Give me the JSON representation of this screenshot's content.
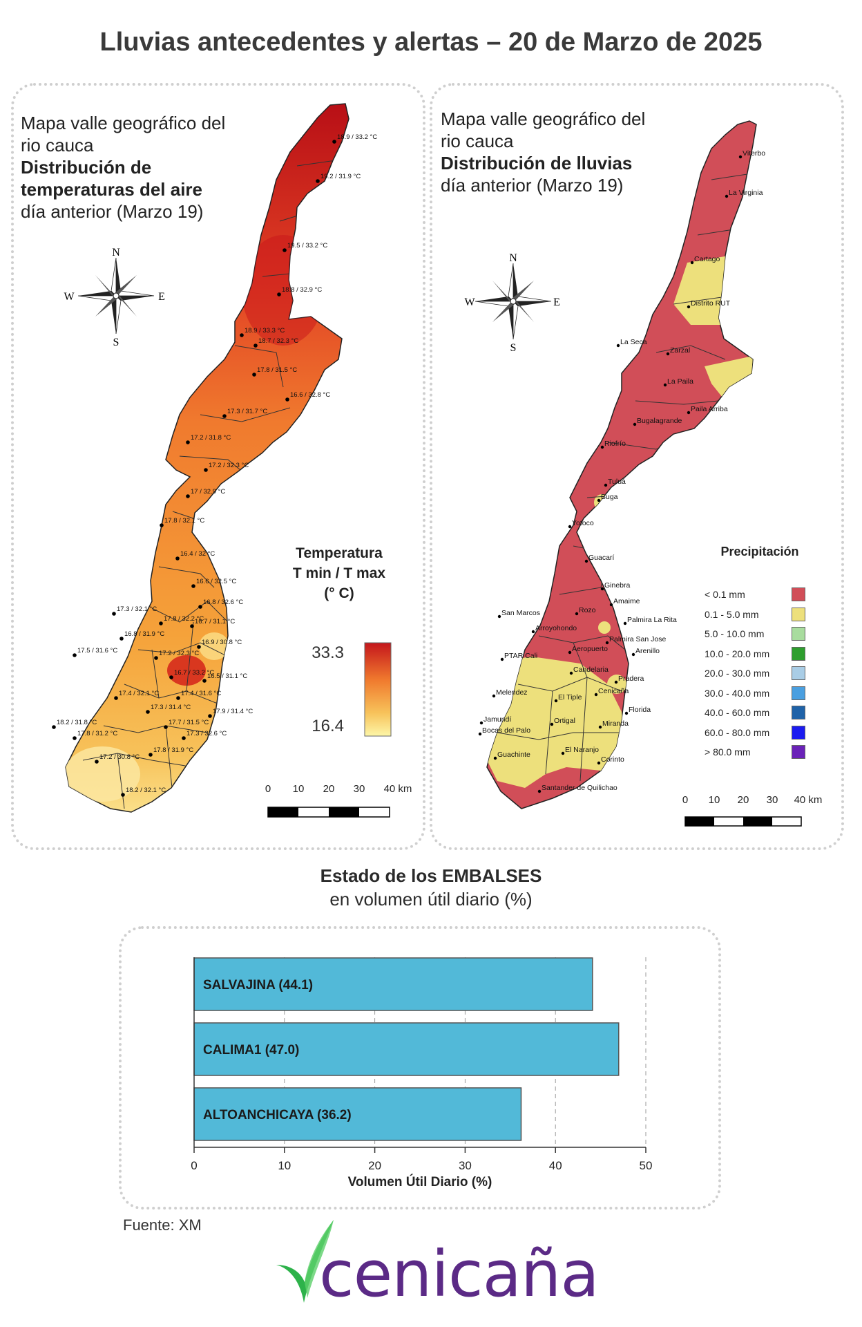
{
  "title": "Lluvias antecedentes y alertas – 20 de Marzo de 2025",
  "temp_panel": {
    "line1": "Mapa valle geográfico del",
    "line2": "rio cauca",
    "bold1": "Distribución de",
    "bold2": "temperaturas del aire",
    "sub": "día anterior (Marzo 19)",
    "legend_line1": "Temperatura",
    "legend_line2": "T min / T max",
    "legend_line3": "(° C)",
    "max_value": "33.3",
    "min_value": "16.4",
    "colors": {
      "low": "#fdf6a8",
      "mid": "#f5a23a",
      "high": "#c4161c"
    },
    "stations": [
      "18.9 / 33.2 °C",
      "19.2 / 31.9 °C",
      "19.5 / 33.2 °C",
      "18.8 / 32.9 °C",
      "18.9 / 33.3 °C",
      "18.7 / 32.3 °C",
      "17.8 / 31.5 °C",
      "16.6 / 32.8 °C",
      "17.3 / 31.7 °C",
      "17.2 / 31.8 °C",
      "17.2 / 32.3 °C",
      "17 / 32.9 °C",
      "17.8 / 32.1 °C",
      "16.4 / 32 °C",
      "16.6 / 32.5 °C",
      "16.8 / 32.6 °C",
      "17.3 / 32.1 °C",
      "17.8 / 32.2 °C",
      "16.7 / 31.1 °C",
      "16.8 / 31.9 °C",
      "16.9 / 30.8 °C",
      "17.5 / 31.6 °C",
      "17.2 / 32.3 °C",
      "16.7 / 33.2 °C",
      "16.5 / 31.1 °C",
      "17.4 / 32.1 °C",
      "17.4 / 31.6 °C",
      "17.3 / 31.4 °C",
      "17.9 / 31.4 °C",
      "18.2 / 31.8 °C",
      "17.7 / 31.5 °C",
      "17.8 / 31.2 °C",
      "17.3 / 32.6 °C",
      "17.8 / 31.9 °C",
      "17.2 / 30.8 °C",
      "18.2 / 32.1 °C"
    ],
    "scale_labels": [
      "0",
      "10",
      "20",
      "30",
      "40 km"
    ],
    "compass": {
      "n": "N",
      "s": "S",
      "e": "E",
      "w": "W"
    }
  },
  "rain_panel": {
    "line1": "Mapa valle geográfico del",
    "line2": "rio cauca",
    "bold1": "Distribución de lluvias",
    "sub": "día anterior (Marzo 19)",
    "legend_title": "Precipitación",
    "legend": [
      {
        "label": "< 0.1 mm",
        "color": "#d14e58"
      },
      {
        "label": "0.1 - 5.0 mm",
        "color": "#ede07c"
      },
      {
        "label": "5.0 - 10.0 mm",
        "color": "#a8dc9e"
      },
      {
        "label": "10.0 - 20.0 mm",
        "color": "#2e9e2e"
      },
      {
        "label": "20.0 - 30.0 mm",
        "color": "#a9cde6"
      },
      {
        "label": "30.0 - 40.0 mm",
        "color": "#4a9fe0"
      },
      {
        "label": "40.0 - 60.0 mm",
        "color": "#1f62a8"
      },
      {
        "label": "60.0 - 80.0 mm",
        "color": "#1b1bf0"
      },
      {
        "label": "> 80.0 mm",
        "color": "#6a22b8"
      }
    ],
    "places": [
      "Viterbo",
      "La Virginia",
      "Cartago",
      "Distrito RUT",
      "La Seca",
      "Zarzal",
      "La Paila",
      "Paila Arriba",
      "Bugalagrande",
      "Riofrío",
      "Tuluá",
      "Buga",
      "Yotoco",
      "Guacarí",
      "Ginebra",
      "Amaime",
      "San Marcos",
      "Rozo",
      "Palmira La Rita",
      "Arroyohondo",
      "Palmira San Jose",
      "Aeropuerto",
      "Arenillo",
      "PTAR Cali",
      "Candelaria",
      "Pradera",
      "Melendez",
      "El Tiple",
      "Cenicaña",
      "Florida",
      "Jamundí",
      "Bocas del Palo",
      "Ortigal",
      "Miranda",
      "El Naranjo",
      "Guachinte",
      "Corinto",
      "Santander de Quilichao"
    ],
    "scale_labels": [
      "0",
      "10",
      "20",
      "30",
      "40 km"
    ],
    "compass": {
      "n": "N",
      "s": "S",
      "e": "E",
      "w": "W"
    }
  },
  "embalses": {
    "title": "Estado de los EMBALSES",
    "subtitle": "en volumen útil diario (%)",
    "source": "Fuente: XM",
    "brand": "cenicaña"
  },
  "chart_data": {
    "type": "bar",
    "orientation": "horizontal",
    "categories": [
      "SALVAJINA (44.1)",
      "CALIMA1 (47.0)",
      "ALTOANCHICAYA (36.2)"
    ],
    "values": [
      44.1,
      47.0,
      36.2
    ],
    "xlabel": "Volumen Útil Diario (%)",
    "xlim": [
      0,
      50
    ],
    "xticks": [
      "0",
      "10",
      "20",
      "30",
      "40",
      "50"
    ],
    "bar_color": "#52b9d8",
    "grid": true
  }
}
